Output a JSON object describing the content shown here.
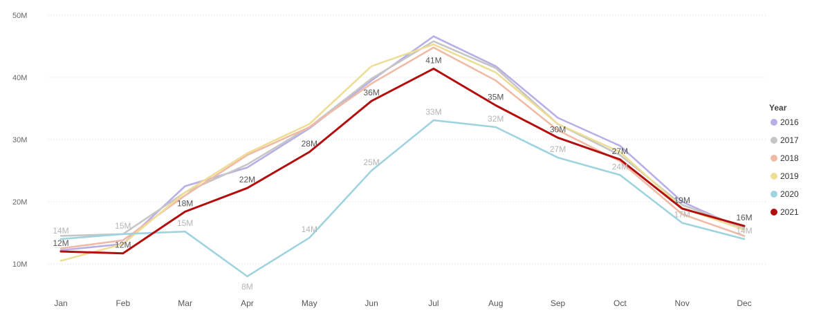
{
  "chart_data": {
    "type": "line",
    "title": "",
    "xlabel": "",
    "ylabel": "",
    "ylim": [
      10,
      50
    ],
    "yticks": [
      10,
      20,
      30,
      40,
      50
    ],
    "ytick_labels": [
      "10M",
      "20M",
      "30M",
      "40M",
      "50M"
    ],
    "grid": true,
    "categories": [
      "Jan",
      "Feb",
      "Mar",
      "Apr",
      "May",
      "Jun",
      "Jul",
      "Aug",
      "Sep",
      "Oct",
      "Nov",
      "Dec"
    ],
    "legend": {
      "title": "Year",
      "position": "right"
    },
    "series": [
      {
        "name": "2016",
        "color": "#b9aee6",
        "values": [
          12.2,
          13.2,
          22.5,
          25.5,
          31.8,
          39.5,
          46.6,
          41.8,
          33.5,
          29.0,
          20.0,
          15.5
        ],
        "labels": []
      },
      {
        "name": "2017",
        "color": "#c6c6c6",
        "values": [
          14.5,
          14.8,
          21.5,
          26.0,
          32.0,
          39.8,
          45.8,
          41.5,
          32.5,
          27.5,
          19.5,
          15.8
        ],
        "labels": []
      },
      {
        "name": "2018",
        "color": "#f0bba6",
        "values": [
          12.5,
          13.8,
          21.0,
          27.5,
          32.0,
          39.0,
          44.8,
          39.5,
          31.5,
          26.5,
          18.0,
          14.5
        ],
        "labels": []
      },
      {
        "name": "2019",
        "color": "#eedd94",
        "values": [
          10.5,
          13.2,
          21.5,
          27.8,
          32.5,
          41.8,
          45.3,
          40.8,
          32.5,
          28.0,
          19.0,
          15.5
        ],
        "labels": []
      },
      {
        "name": "2020",
        "color": "#9ed3df",
        "values": [
          14.0,
          14.8,
          15.2,
          8.0,
          14.2,
          25.0,
          33.1,
          32.0,
          27.1,
          24.3,
          16.6,
          14.0
        ],
        "labels": [
          "14M",
          "15M",
          "15M",
          "8M",
          "14M",
          "25M",
          "33M",
          "32M",
          "27M",
          "24M",
          "17M",
          "14M"
        ],
        "label_color": "#b5b5b5"
      },
      {
        "name": "2021",
        "color": "#b30d0d",
        "values": [
          12.0,
          11.7,
          18.4,
          22.2,
          28.0,
          36.2,
          41.4,
          35.5,
          30.3,
          26.8,
          18.9,
          16.1
        ],
        "labels": [
          "12M",
          "12M",
          "18M",
          "22M",
          "28M",
          "36M",
          "41M",
          "35M",
          "30M",
          "27M",
          "19M",
          "16M"
        ],
        "label_color": "#555555"
      }
    ]
  }
}
